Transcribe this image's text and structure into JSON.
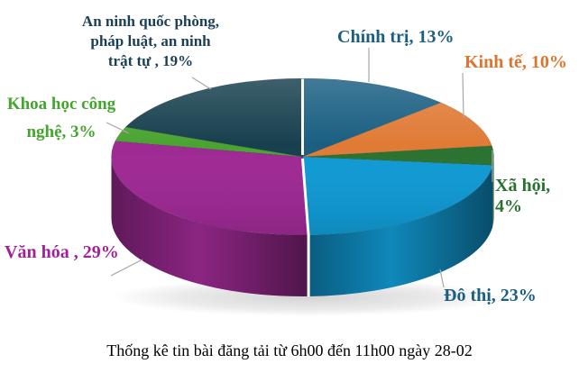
{
  "chart_data": {
    "type": "pie",
    "is_3d": true,
    "direction": "clockwise",
    "start_angle_deg": 0,
    "unit": "%",
    "title": "Thống kê tin bài đăng tải từ 6h00 đến 11h00 ngày 28-02",
    "slices": [
      {
        "id": "chinh-tri",
        "label": "Chính trị",
        "value": 13,
        "color": "#1A5F82"
      },
      {
        "id": "kinh-te",
        "label": "Kinh tế",
        "value": 10,
        "color": "#E07B36"
      },
      {
        "id": "xa-hoi",
        "label": "Xã hội",
        "value": 4,
        "color": "#2B7231"
      },
      {
        "id": "do-thi",
        "label": "Đô thị",
        "value": 23,
        "color": "#119AD3"
      },
      {
        "id": "van-hoa",
        "label": "Văn hóa",
        "value": 29,
        "color": "#9E2A94"
      },
      {
        "id": "khcn",
        "label": "Khoa học công nghệ",
        "value": 3,
        "color": "#4AA432"
      },
      {
        "id": "an-ninh",
        "label": "An ninh quốc phòng, pháp luật, an ninh trật tự",
        "value": 19,
        "color": "#17404E"
      }
    ],
    "legend_position": "none",
    "data_labels_outside": true
  },
  "labels": {
    "an_ninh": {
      "text": "An ninh quốc phòng,\npháp luật, an ninh\ntrật tự , 19%",
      "color": "#1B3F54"
    },
    "khcn": {
      "text": "Khoa học công\nnghệ, 3%",
      "color": "#44A42E"
    },
    "chinh_tri": {
      "text": "Chính trị, 13%",
      "color": "#1A5F82"
    },
    "kinh_te": {
      "text": "Kinh tế, 10%",
      "color": "#E0742E"
    },
    "xa_hoi": {
      "text": "Xã hội, 4%",
      "color": "#2B7231"
    },
    "do_thi": {
      "text": "Đô thị, 23%",
      "color": "#1C5E82"
    },
    "van_hoa": {
      "text": "Văn hóa , 29%",
      "color": "#A2219B"
    }
  },
  "caption": "Thống kê tin bài đăng tải từ 6h00 đến 11h00 ngày 28-02",
  "colors": {
    "background": "#FFFFFF",
    "leader_line": "#A8A8A8",
    "separator": "#FFFFFF",
    "caption_text": "#000000"
  }
}
